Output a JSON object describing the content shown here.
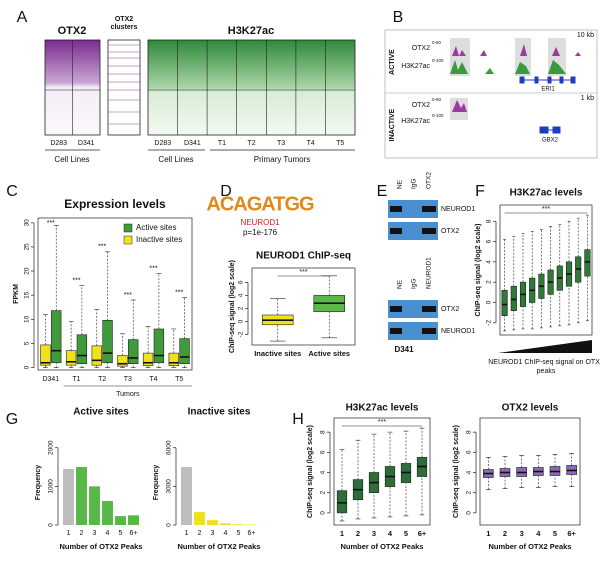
{
  "panels": {
    "letters": [
      "A",
      "B",
      "C",
      "D",
      "E",
      "F",
      "G",
      "H"
    ],
    "A": {
      "heatmap1_title": "OTX2",
      "clusters_title": "OTX2 clusters",
      "heatmap2_title": "H3K27ac",
      "heatmap1_columns": [
        "D283",
        "D341"
      ],
      "heatmap2_columns": [
        "D283",
        "D341",
        "T1",
        "T2",
        "T3",
        "T4",
        "T5"
      ],
      "group_labels": [
        "Cell Lines",
        "Primary Tumors"
      ]
    },
    "B": {
      "active": "ACTIVE",
      "inactive": "INACTIVE",
      "track_labels": [
        "OTX2",
        "H3K27ac"
      ],
      "ranges": [
        "0-60",
        "0-100"
      ],
      "scales": [
        "10 kb",
        "1 kb"
      ],
      "genes": [
        "ERI1",
        "GBX2"
      ]
    },
    "D": {
      "motif": "ACAGATGG",
      "motif_factor": "NEUROD1",
      "p_value": "p=1e-176"
    },
    "E": {
      "top_lanes": [
        "NE",
        "IgG",
        "OTX2"
      ],
      "top_blots": [
        "NEUROD1",
        "OTX2"
      ],
      "bottom_lanes": [
        "NE",
        "IgG",
        "NEUROD1"
      ],
      "bottom_blots": [
        "OTX2",
        "NEUROD1"
      ],
      "cell_line": "D341"
    }
  },
  "chart_data": [
    {
      "type": "boxplot",
      "title": "Expression levels",
      "ylabel": "FPKM",
      "categories": [
        "D341",
        "T1",
        "T2",
        "T3",
        "T4",
        "T5"
      ],
      "group_label": "Tumors",
      "series": [
        {
          "name": "Active sites",
          "color": "#3f9b3a",
          "boxes": [
            {
              "low": 0,
              "q1": 1,
              "median": 3.5,
              "q3": 11.8,
              "high": 29.5
            },
            {
              "low": 0,
              "q1": 0.8,
              "median": 2.5,
              "q3": 6.8,
              "high": 17
            },
            {
              "low": 0,
              "q1": 1,
              "median": 3,
              "q3": 9.8,
              "high": 24
            },
            {
              "low": 0,
              "q1": 0.8,
              "median": 2,
              "q3": 5.8,
              "high": 14
            },
            {
              "low": 0,
              "q1": 1,
              "median": 2.5,
              "q3": 8,
              "high": 19.5
            },
            {
              "low": 0,
              "q1": 0.8,
              "median": 2.2,
              "q3": 6,
              "high": 14.5
            }
          ]
        },
        {
          "name": "Inactive sites",
          "color": "#f0e21a",
          "boxes": [
            {
              "low": 0,
              "q1": 0.5,
              "median": 1,
              "q3": 4.7,
              "high": 11
            },
            {
              "low": 0,
              "q1": 0.5,
              "median": 1.2,
              "q3": 3.5,
              "high": 9.5
            },
            {
              "low": 0,
              "q1": 0.5,
              "median": 1.5,
              "q3": 4.5,
              "high": 12
            },
            {
              "low": 0,
              "q1": 0.3,
              "median": 0.8,
              "q3": 2.5,
              "high": 7
            },
            {
              "low": 0,
              "q1": 0.4,
              "median": 1,
              "q3": 3,
              "high": 8.5
            },
            {
              "low": 0,
              "q1": 0.4,
              "median": 1,
              "q3": 3,
              "high": 8
            }
          ]
        }
      ],
      "annotations": [
        "***",
        "***",
        "***",
        "***",
        "***",
        "***"
      ],
      "ylim": [
        -0.5,
        31
      ],
      "yticks": [
        0,
        5,
        10,
        15,
        20,
        25,
        30
      ],
      "legend": "upper right"
    },
    {
      "type": "boxplot",
      "title": "NEUROD1 ChIP-seq",
      "ylabel": "ChIP-seq signal (log2 scale)",
      "categories": [
        "Inactive sites",
        "Active sites"
      ],
      "colors": [
        "#f0e21a",
        "#5cb84a"
      ],
      "boxes": [
        {
          "low": -3,
          "q1": -0.5,
          "median": 0.2,
          "q3": 1,
          "high": 3.5
        },
        {
          "low": -2.5,
          "q1": 1.5,
          "median": 2.8,
          "q3": 4,
          "high": 7
        }
      ],
      "annotations": [
        "***"
      ],
      "ylim": [
        -3.6,
        8.2
      ],
      "yticks": [
        -2,
        0,
        2,
        4,
        6
      ]
    },
    {
      "type": "boxplot",
      "title": "H3K27ac levels",
      "ylabel": "ChIP-seq signal (log2 scale)",
      "xlabel": "NEUROD1 ChIP-seq signal on OTX2 peaks",
      "color": "#2e7a36",
      "boxes": [
        {
          "low": -2.8,
          "q1": -1.3,
          "median": -0.2,
          "q3": 1.2,
          "high": 6.2
        },
        {
          "low": -2.7,
          "q1": -0.8,
          "median": 0.3,
          "q3": 1.6,
          "high": 6.5
        },
        {
          "low": -2.6,
          "q1": -0.4,
          "median": 0.8,
          "q3": 2,
          "high": 6.8
        },
        {
          "low": -2.6,
          "q1": 0,
          "median": 1.2,
          "q3": 2.4,
          "high": 7
        },
        {
          "low": -2.5,
          "q1": 0.4,
          "median": 1.6,
          "q3": 2.8,
          "high": 7.2
        },
        {
          "low": -2.4,
          "q1": 0.8,
          "median": 2,
          "q3": 3.2,
          "high": 7.5
        },
        {
          "low": -2.3,
          "q1": 1.2,
          "median": 2.4,
          "q3": 3.6,
          "high": 7.7
        },
        {
          "low": -2.2,
          "q1": 1.6,
          "median": 2.8,
          "q3": 4,
          "high": 8
        },
        {
          "low": -2,
          "q1": 2,
          "median": 3.3,
          "q3": 4.5,
          "high": 8.3
        },
        {
          "low": -1.8,
          "q1": 2.6,
          "median": 4,
          "q3": 5.2,
          "high": 8.6
        }
      ],
      "annotations": [
        "***"
      ],
      "ylim": [
        -3.2,
        9.6
      ],
      "yticks": [
        -2,
        0,
        2,
        4,
        6,
        8
      ]
    },
    {
      "type": "bar",
      "title": "Active sites",
      "xlabel": "Number of OTX2 Peaks",
      "ylabel": "Frequency",
      "categories": [
        "1",
        "2",
        "3",
        "4",
        "5",
        "6+"
      ],
      "values": [
        1450,
        1500,
        1000,
        620,
        230,
        250
      ],
      "colors": [
        "#bdbdbd",
        "#57b847",
        "#57b847",
        "#57b847",
        "#57b847",
        "#57b847"
      ],
      "ylim": [
        0,
        2200
      ],
      "yticks": [
        0,
        1000,
        2000
      ]
    },
    {
      "type": "bar",
      "title": "Inactive sites",
      "xlabel": "Number of OTX2 Peaks",
      "ylabel": "Frequency",
      "categories": [
        "1",
        "2",
        "3",
        "4",
        "5",
        "6+"
      ],
      "values": [
        4500,
        1000,
        380,
        130,
        60,
        40
      ],
      "colors": [
        "#bdbdbd",
        "#efe21b",
        "#efe21b",
        "#efe21b",
        "#efe21b",
        "#efe21b"
      ],
      "ylim": [
        0,
        6600
      ],
      "yticks": [
        0,
        3000,
        6000
      ]
    },
    {
      "type": "boxplot",
      "title": "H3K27ac levels",
      "ylabel": "ChIP-seq signal (log2 scale)",
      "xlabel": "Number of OTX2 Peaks",
      "categories": [
        "1",
        "2",
        "3",
        "4",
        "5",
        "6+"
      ],
      "color": "#2e6e3a",
      "boxes": [
        {
          "low": -0.8,
          "q1": 0,
          "median": 1,
          "q3": 2.2,
          "high": 6.3
        },
        {
          "low": -0.6,
          "q1": 1.3,
          "median": 2.3,
          "q3": 3.3,
          "high": 7.2
        },
        {
          "low": -0.5,
          "q1": 2,
          "median": 3,
          "q3": 4,
          "high": 7.8
        },
        {
          "low": -0.4,
          "q1": 2.6,
          "median": 3.6,
          "q3": 4.6,
          "high": 8
        },
        {
          "low": -0.3,
          "q1": 3,
          "median": 4,
          "q3": 4.9,
          "high": 8.1
        },
        {
          "low": -0.2,
          "q1": 3.6,
          "median": 4.6,
          "q3": 5.5,
          "high": 8.4
        }
      ],
      "annotations": [
        "***"
      ],
      "ylim": [
        -1.2,
        9.4
      ],
      "yticks": [
        0,
        2,
        4,
        6,
        8
      ]
    },
    {
      "type": "boxplot",
      "title": "OTX2 levels",
      "ylabel": "ChIP-seq signal (log2 scale)",
      "xlabel": "Number of OTX2 Peaks",
      "categories": [
        "1",
        "2",
        "3",
        "4",
        "5",
        "6+"
      ],
      "color": "#8d68b8",
      "boxes": [
        {
          "low": 2.3,
          "q1": 3.5,
          "median": 3.9,
          "q3": 4.3,
          "high": 5.5
        },
        {
          "low": 2.4,
          "q1": 3.6,
          "median": 4,
          "q3": 4.4,
          "high": 5.6
        },
        {
          "low": 2.5,
          "q1": 3.6,
          "median": 4,
          "q3": 4.5,
          "high": 5.7
        },
        {
          "low": 2.5,
          "q1": 3.7,
          "median": 4.1,
          "q3": 4.5,
          "high": 5.7
        },
        {
          "low": 2.6,
          "q1": 3.7,
          "median": 4.1,
          "q3": 4.6,
          "high": 5.8
        },
        {
          "low": 2.6,
          "q1": 3.8,
          "median": 4.2,
          "q3": 4.7,
          "high": 5.9
        }
      ],
      "ylim": [
        -1.2,
        9.4
      ],
      "yticks": [
        0,
        2,
        4,
        6,
        8
      ]
    }
  ]
}
